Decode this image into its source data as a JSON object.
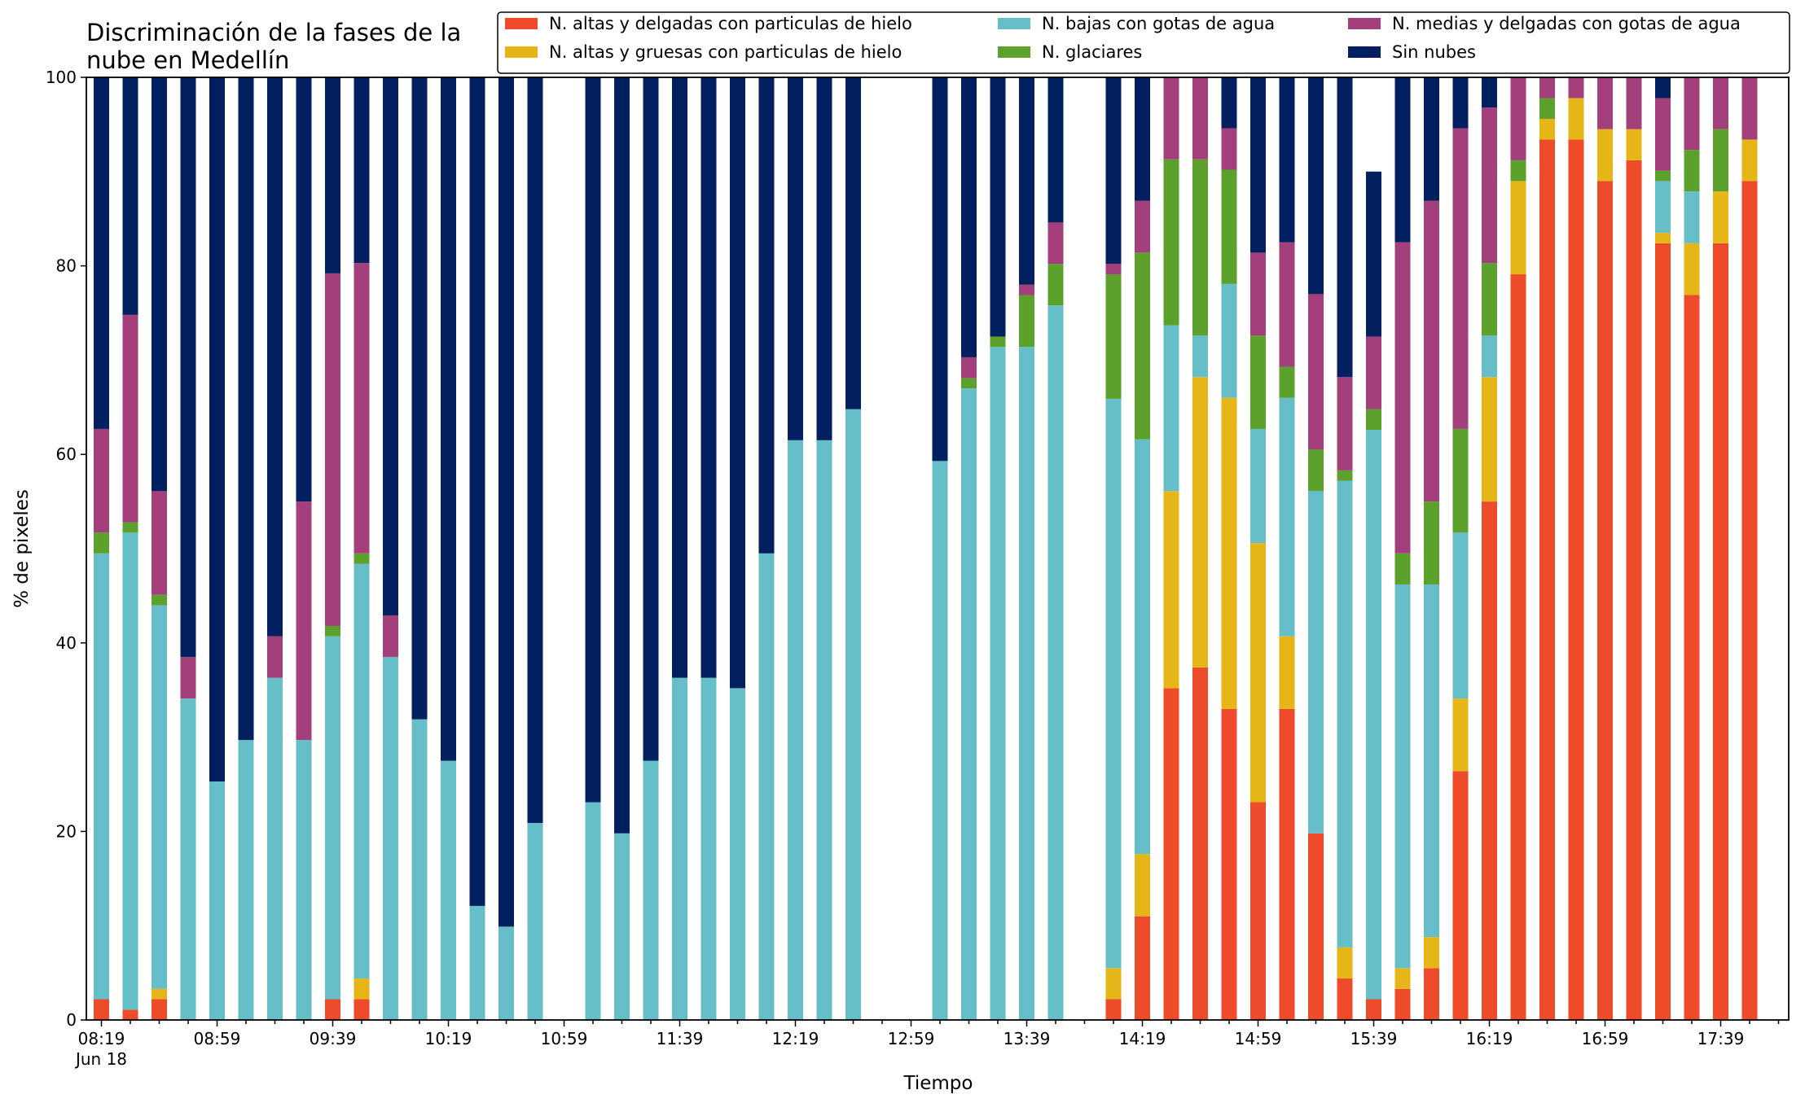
{
  "chart_data": {
    "type": "bar",
    "stacked": true,
    "title_lines": [
      "Discriminación de la fases de la",
      "nube en Medellín"
    ],
    "xlabel": "Tiempo",
    "ylabel": "% de pixeles",
    "ylim": [
      0,
      100
    ],
    "yticks": [
      0,
      20,
      40,
      60,
      80,
      100
    ],
    "grid": false,
    "legend_position": "top-right",
    "x_start": "08:19",
    "x_step_minutes": 10,
    "x_date_label": "Jun 18",
    "xtick_labels": [
      "08:19",
      "08:59",
      "09:39",
      "10:19",
      "10:59",
      "11:39",
      "12:19",
      "12:59",
      "13:39",
      "14:19",
      "14:59",
      "15:39",
      "16:19",
      "16:59",
      "17:39"
    ],
    "categories": [
      "08:19",
      "08:29",
      "08:39",
      "08:49",
      "08:59",
      "09:09",
      "09:19",
      "09:29",
      "09:39",
      "09:49",
      "09:59",
      "10:09",
      "10:19",
      "10:29",
      "10:39",
      "10:49",
      "10:59",
      "11:09",
      "11:19",
      "11:29",
      "11:39",
      "11:49",
      "11:59",
      "12:09",
      "12:19",
      "12:29",
      "12:39",
      "12:49",
      "12:59",
      "13:09",
      "13:19",
      "13:29",
      "13:39",
      "13:49",
      "13:59",
      "14:09",
      "14:19",
      "14:29",
      "14:39",
      "14:49",
      "14:59",
      "15:09",
      "15:19",
      "15:29",
      "15:39",
      "15:49",
      "15:59",
      "16:09",
      "16:19",
      "16:29",
      "16:39",
      "16:49",
      "16:59",
      "17:09",
      "17:19",
      "17:29",
      "17:39",
      "17:49"
    ],
    "series": [
      {
        "name": "N. altas y delgadas con particulas de hielo",
        "color": "#ee4b2b",
        "values": [
          2.2,
          1.1,
          2.2,
          0,
          0,
          0,
          0,
          0,
          2.2,
          2.2,
          0,
          0,
          0,
          0,
          0,
          0,
          null,
          0,
          0,
          0,
          0,
          0,
          0,
          0,
          0,
          0,
          0,
          0,
          null,
          0,
          0,
          0,
          0,
          0,
          null,
          2.2,
          11,
          35.2,
          37.4,
          33,
          23.1,
          33,
          19.8,
          4.4,
          2.2,
          3.3,
          5.5,
          26.4,
          55,
          79.1,
          93.4,
          93.4,
          89,
          91.2,
          82.4,
          76.9,
          82.4,
          89
        ]
      },
      {
        "name": "N. altas y gruesas con particulas de hielo",
        "color": "#e6b619",
        "values": [
          0,
          0,
          1.1,
          0,
          0,
          0,
          0,
          0,
          0,
          2.2,
          0,
          0,
          0,
          0,
          0,
          0,
          null,
          0,
          0,
          0,
          0,
          0,
          0,
          0,
          0,
          0,
          0,
          0,
          null,
          0,
          0,
          0,
          0,
          0,
          null,
          3.3,
          6.6,
          20.9,
          30.8,
          33,
          27.5,
          7.7,
          0,
          3.3,
          0,
          2.2,
          3.3,
          7.7,
          13.2,
          9.9,
          2.2,
          4.4,
          5.5,
          3.3,
          1.1,
          5.5,
          5.5,
          4.4
        ]
      },
      {
        "name": "N. bajas con gotas de agua",
        "color": "#66bec9",
        "values": [
          47.3,
          50.6,
          40.7,
          34.1,
          25.3,
          29.7,
          36.3,
          29.7,
          38.5,
          44,
          38.5,
          31.9,
          27.5,
          12.1,
          9.9,
          20.9,
          null,
          23.1,
          19.8,
          27.5,
          36.3,
          36.3,
          35.2,
          49.5,
          61.5,
          61.5,
          64.8,
          0,
          null,
          59.3,
          67,
          71.4,
          71.4,
          75.8,
          null,
          60.4,
          44,
          17.6,
          4.4,
          12.1,
          12.1,
          25.3,
          36.3,
          49.5,
          60.4,
          40.7,
          37.4,
          17.6,
          4.4,
          0,
          0,
          0,
          0,
          0,
          5.5,
          5.5,
          0,
          0
        ]
      },
      {
        "name": "N. glaciares",
        "color": "#5ba12c",
        "values": [
          2.2,
          1.1,
          1.1,
          0,
          0,
          0,
          0,
          0,
          1.1,
          1.1,
          0,
          0,
          0,
          0,
          0,
          0,
          null,
          0,
          0,
          0,
          0,
          0,
          0,
          0,
          0,
          0,
          0,
          0,
          null,
          0,
          1.1,
          1.1,
          5.5,
          4.4,
          null,
          13.2,
          19.8,
          17.6,
          18.7,
          12.1,
          9.9,
          3.3,
          4.4,
          1.1,
          2.2,
          3.3,
          8.8,
          11,
          7.7,
          2.2,
          2.2,
          0,
          0,
          0,
          1.1,
          4.4,
          6.6,
          0
        ]
      },
      {
        "name": "N. medias y delgadas con gotas de agua",
        "color": "#a3407b",
        "values": [
          11,
          22,
          11,
          4.4,
          0,
          0,
          4.4,
          25.3,
          37.4,
          30.8,
          4.4,
          0,
          0,
          0,
          0,
          0,
          null,
          0,
          0,
          0,
          0,
          0,
          0,
          0,
          0,
          0,
          0,
          0,
          null,
          0,
          2.2,
          0,
          1.1,
          4.4,
          null,
          1.1,
          5.5,
          8.8,
          8.8,
          4.4,
          8.8,
          13.2,
          16.5,
          9.9,
          7.7,
          33,
          31.9,
          31.9,
          16.5,
          8.8,
          2.2,
          2.2,
          5.5,
          5.5,
          7.7,
          7.7,
          5.5,
          6.6
        ]
      },
      {
        "name": "Sin nubes",
        "color": "#02205f",
        "values": [
          37.3,
          25.2,
          43.9,
          61.5,
          74.7,
          70.3,
          59.3,
          45,
          20.8,
          19.7,
          57.1,
          68.1,
          72.5,
          87.9,
          90.1,
          79.1,
          null,
          76.9,
          80.2,
          72.5,
          63.7,
          63.7,
          64.8,
          50.5,
          38.5,
          38.5,
          35.2,
          0,
          null,
          40.7,
          29.7,
          27.5,
          22,
          15.4,
          null,
          19.8,
          13.1,
          0,
          0,
          5.4,
          18.6,
          17.5,
          23,
          31.8,
          17.5,
          27.5,
          13.1,
          5.4,
          3.2,
          0,
          0,
          0,
          0,
          0,
          2.2,
          0,
          0,
          0
        ]
      }
    ]
  }
}
